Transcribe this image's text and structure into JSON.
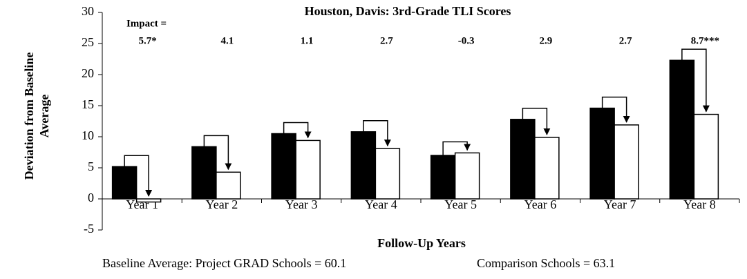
{
  "chart_data": {
    "type": "bar",
    "title": "Houston, Davis: 3rd-Grade TLI Scores",
    "xlabel": "Follow-Up Years",
    "ylabel": [
      "Deviation from Baseline",
      "Average"
    ],
    "categories": [
      "Year 1",
      "Year 2",
      "Year 3",
      "Year 4",
      "Year 5",
      "Year 6",
      "Year 7",
      "Year 8"
    ],
    "series": [
      {
        "color": "#000000",
        "values": [
          5.2,
          8.4,
          10.5,
          10.8,
          7.0,
          12.8,
          14.6,
          22.3
        ]
      },
      {
        "color": "#ffffff",
        "values": [
          -0.5,
          4.3,
          9.4,
          8.1,
          7.4,
          9.9,
          11.9,
          13.6
        ]
      }
    ],
    "impact_title": "Impact =",
    "impact_labels": [
      "5.7*",
      "4.1",
      "1.1",
      "2.7",
      "-0.3",
      "2.9",
      "2.7",
      "8.7***"
    ],
    "notes": [
      "Baseline Average: Project GRAD Schools = 60.1",
      "Comparison Schools = 63.1"
    ],
    "ylim": [
      -5,
      30
    ],
    "yticks": [
      -5,
      0,
      5,
      10,
      15,
      20,
      25,
      30
    ]
  }
}
